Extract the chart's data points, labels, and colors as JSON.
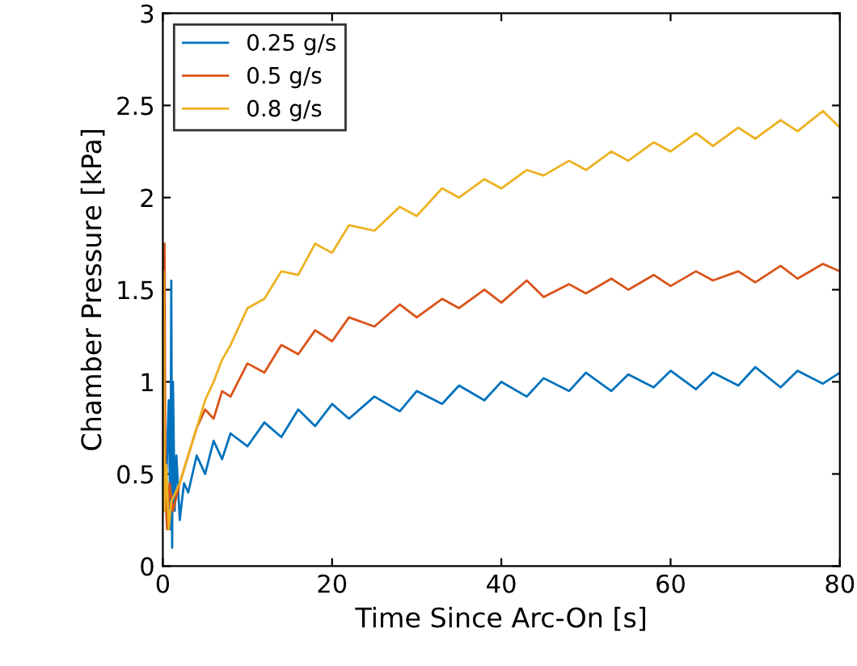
{
  "chart_data": {
    "type": "line",
    "xlabel": "Time Since Arc-On [s]",
    "ylabel": "Chamber Pressure [kPa]",
    "xlim": [
      0,
      80
    ],
    "ylim": [
      0,
      3
    ],
    "xticks": [
      0,
      20,
      40,
      60,
      80
    ],
    "yticks": [
      0,
      0.5,
      1,
      1.5,
      2,
      2.5,
      3
    ],
    "grid": false,
    "legend": "top left",
    "marker": "none",
    "line_style": "solid",
    "series": [
      {
        "name": "0.25 g/s",
        "color": "#0072bd",
        "x": [
          0,
          0.4,
          0.7,
          0.9,
          1.0,
          1.1,
          1.2,
          1.4,
          1.6,
          2,
          2.5,
          3,
          4,
          5,
          6,
          7,
          8,
          10,
          12,
          14,
          16,
          18,
          20,
          22,
          25,
          28,
          30,
          33,
          35,
          38,
          40,
          43,
          45,
          48,
          50,
          53,
          55,
          58,
          60,
          63,
          65,
          68,
          70,
          73,
          75,
          78,
          80
        ],
        "values": [
          0.3,
          0.45,
          0.9,
          0.2,
          1.55,
          0.1,
          1.0,
          0.3,
          0.6,
          0.25,
          0.45,
          0.4,
          0.6,
          0.5,
          0.68,
          0.58,
          0.72,
          0.65,
          0.78,
          0.7,
          0.85,
          0.76,
          0.88,
          0.8,
          0.92,
          0.84,
          0.95,
          0.88,
          0.98,
          0.9,
          1.0,
          0.92,
          1.02,
          0.95,
          1.05,
          0.95,
          1.04,
          0.97,
          1.06,
          0.96,
          1.05,
          0.98,
          1.08,
          0.97,
          1.06,
          0.99,
          1.05
        ]
      },
      {
        "name": "0.5 g/s",
        "color": "#d95319",
        "x": [
          0,
          0.2,
          0.3,
          0.5,
          0.8,
          1.2,
          2,
          3,
          4,
          5,
          6,
          7,
          8,
          10,
          12,
          14,
          16,
          18,
          20,
          22,
          25,
          28,
          30,
          33,
          35,
          38,
          40,
          43,
          45,
          48,
          50,
          53,
          55,
          58,
          60,
          63,
          65,
          68,
          70,
          73,
          75,
          78,
          80
        ],
        "values": [
          0.3,
          1.75,
          0.4,
          0.2,
          0.45,
          0.3,
          0.45,
          0.6,
          0.75,
          0.85,
          0.8,
          0.95,
          0.92,
          1.1,
          1.05,
          1.2,
          1.15,
          1.28,
          1.22,
          1.35,
          1.3,
          1.42,
          1.35,
          1.45,
          1.4,
          1.5,
          1.43,
          1.55,
          1.46,
          1.53,
          1.48,
          1.56,
          1.5,
          1.58,
          1.52,
          1.6,
          1.55,
          1.6,
          1.54,
          1.63,
          1.56,
          1.64,
          1.6
        ]
      },
      {
        "name": "0.8 g/s",
        "color": "#edb120",
        "x": [
          0,
          0.1,
          0.2,
          0.4,
          0.7,
          1,
          1.5,
          2,
          3,
          4,
          5,
          6,
          7,
          8,
          10,
          12,
          14,
          16,
          18,
          20,
          22,
          25,
          28,
          30,
          33,
          35,
          38,
          40,
          43,
          45,
          48,
          50,
          53,
          55,
          58,
          60,
          63,
          65,
          68,
          70,
          73,
          75,
          78,
          80
        ],
        "values": [
          0.3,
          1.6,
          0.3,
          0.55,
          0.2,
          0.35,
          0.4,
          0.45,
          0.6,
          0.75,
          0.9,
          1.0,
          1.12,
          1.2,
          1.4,
          1.45,
          1.6,
          1.58,
          1.75,
          1.7,
          1.85,
          1.82,
          1.95,
          1.9,
          2.05,
          2.0,
          2.1,
          2.05,
          2.15,
          2.12,
          2.2,
          2.15,
          2.25,
          2.2,
          2.3,
          2.25,
          2.35,
          2.28,
          2.38,
          2.32,
          2.42,
          2.36,
          2.47,
          2.38
        ]
      }
    ]
  }
}
